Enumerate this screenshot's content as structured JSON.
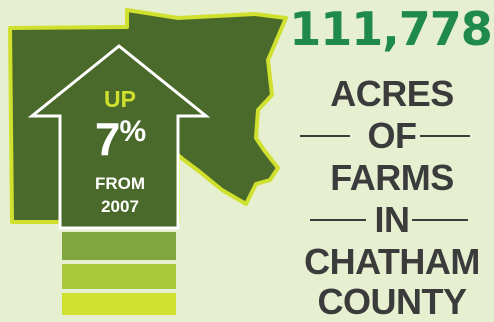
{
  "headline": {
    "number": "111,778",
    "lines": [
      "ACRES",
      "OF",
      "FARMS",
      "IN",
      "CHATHAM",
      "COUNTY"
    ]
  },
  "arrow": {
    "up": "UP",
    "percent": "7",
    "percent_symbol": "%",
    "from_line1": "FROM",
    "from_line2": "2007"
  },
  "colors": {
    "background": "#e6efd0",
    "map_fill": "#4a6a2b",
    "map_outline": "#cfe02e",
    "number": "#1f8a4c",
    "text": "#3b3b3b",
    "bar_1": "#7fa63f",
    "bar_2": "#a9c83a",
    "bar_3": "#cfe02e"
  }
}
